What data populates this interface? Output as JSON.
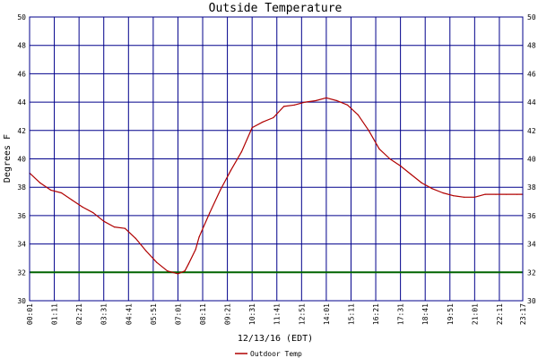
{
  "chart_data": {
    "type": "line",
    "title": "Outside Temperature",
    "ylabel": "Degrees F",
    "xlabel": "12/13/16 (EDT)",
    "ylim": [
      30,
      50
    ],
    "yticks": [
      "30",
      "32",
      "34",
      "36",
      "38",
      "40",
      "42",
      "44",
      "46",
      "48",
      "50"
    ],
    "xticks": [
      "00:01",
      "01:11",
      "02:21",
      "03:31",
      "04:41",
      "05:51",
      "07:01",
      "08:11",
      "09:21",
      "10:31",
      "11:41",
      "12:51",
      "14:01",
      "15:11",
      "16:21",
      "17:31",
      "18:41",
      "19:51",
      "21:01",
      "22:11",
      "23:17"
    ],
    "x_hours": [
      0.0,
      0.5,
      1.0,
      1.5,
      2.0,
      2.5,
      3.0,
      3.5,
      4.0,
      4.5,
      5.0,
      5.5,
      6.0,
      6.5,
      7.0,
      7.33,
      7.5,
      7.83,
      8.0,
      8.5,
      9.0,
      9.5,
      10.0,
      10.5,
      11.0,
      11.5,
      12.0,
      12.5,
      13.0,
      13.5,
      14.0,
      14.5,
      14.67,
      15.0,
      15.5,
      16.0,
      16.5,
      17.0,
      17.5,
      18.0,
      18.5,
      19.0,
      19.5,
      20.0,
      20.5,
      21.0,
      21.5,
      22.0,
      22.5,
      23.0,
      23.27
    ],
    "grid": true,
    "legend_position": "bottom",
    "reference_line": {
      "value": 32,
      "color": "#006400"
    },
    "series": [
      {
        "name": "Outdoor Temp",
        "color": "#b00000",
        "values": [
          39.0,
          38.3,
          37.8,
          37.6,
          37.1,
          36.6,
          36.2,
          35.6,
          35.2,
          35.1,
          34.4,
          33.5,
          32.7,
          32.1,
          31.9,
          32.1,
          32.6,
          33.6,
          34.5,
          36.2,
          37.8,
          39.2,
          40.5,
          42.2,
          42.6,
          42.9,
          43.7,
          43.8,
          44.0,
          44.1,
          44.3,
          44.1,
          44.0,
          43.8,
          43.1,
          42.0,
          40.7,
          40.0,
          39.5,
          38.9,
          38.3,
          37.9,
          37.6,
          37.4,
          37.3,
          37.3,
          37.5,
          37.5,
          37.5,
          37.5,
          37.5
        ]
      }
    ]
  }
}
